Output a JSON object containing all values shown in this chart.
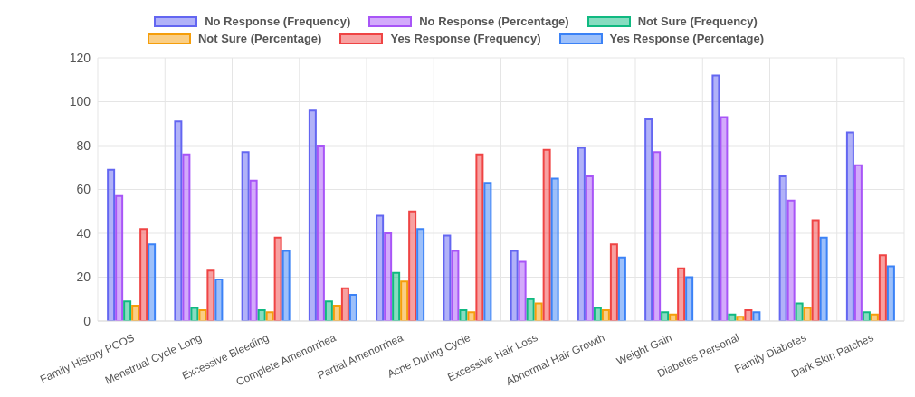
{
  "chart_data": {
    "type": "bar",
    "categories": [
      "Family History PCOS",
      "Menstrual Cycle Long",
      "Excessive Bleeding",
      "Complete Amenorrhea",
      "Partial Amenorrhea",
      "Acne During Cycle",
      "Excessive Hair Loss",
      "Abnormal Hair Growth",
      "Weight Gain",
      "Diabetes Personal",
      "Family Diabetes",
      "Dark Skin Patches"
    ],
    "series": [
      {
        "name": "No Response (Frequency)",
        "color": "#6366f1",
        "values": [
          69,
          91,
          77,
          96,
          48,
          39,
          32,
          79,
          92,
          112,
          66,
          86
        ]
      },
      {
        "name": "No Response (Percentage)",
        "color": "#a855f7",
        "values": [
          57,
          76,
          64,
          80,
          40,
          32,
          27,
          66,
          77,
          93,
          55,
          71
        ]
      },
      {
        "name": "Not Sure (Frequency)",
        "color": "#10b981",
        "values": [
          9,
          6,
          5,
          9,
          22,
          5,
          10,
          6,
          4,
          3,
          8,
          4
        ]
      },
      {
        "name": "Not Sure (Percentage)",
        "color": "#f59e0b",
        "values": [
          7,
          5,
          4,
          7,
          18,
          4,
          8,
          5,
          3,
          2,
          6,
          3
        ]
      },
      {
        "name": "Yes Response (Frequency)",
        "color": "#ef4444",
        "values": [
          42,
          23,
          38,
          15,
          50,
          76,
          78,
          35,
          24,
          5,
          46,
          30
        ]
      },
      {
        "name": "Yes Response (Percentage)",
        "color": "#3b82f6",
        "values": [
          35,
          19,
          32,
          12,
          42,
          63,
          65,
          29,
          20,
          4,
          38,
          25
        ]
      }
    ],
    "ylim": [
      0,
      120
    ],
    "yticks": [
      0,
      20,
      40,
      60,
      80,
      100,
      120
    ],
    "grid": true,
    "legend": "top"
  }
}
